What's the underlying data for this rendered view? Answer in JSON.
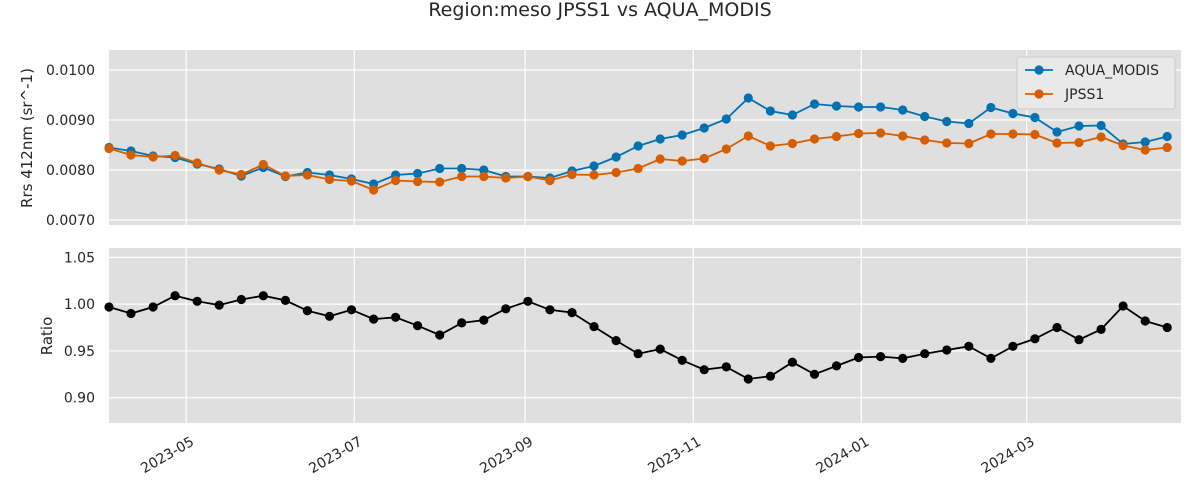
{
  "figure": {
    "title": "Region:meso JPSS1 vs AQUA_MODIS"
  },
  "chart_data": [
    {
      "type": "line",
      "ylabel": "Rrs 412nm (sr^-1)",
      "ylim": [
        0.0069,
        0.0104
      ],
      "xlim": [
        "2023-04-03",
        "2024-04-26"
      ],
      "yticks": [
        0.007,
        0.008,
        0.009,
        0.01
      ],
      "ytick_labels": [
        "0.0070",
        "0.0080",
        "0.0090",
        "0.0100"
      ],
      "grid": true,
      "legend_position": "top-right",
      "x": [
        "2023-04-03",
        "2023-04-11",
        "2023-04-19",
        "2023-04-27",
        "2023-05-05",
        "2023-05-13",
        "2023-05-21",
        "2023-05-29",
        "2023-06-06",
        "2023-06-14",
        "2023-06-22",
        "2023-06-30",
        "2023-07-08",
        "2023-07-16",
        "2023-07-24",
        "2023-08-01",
        "2023-08-09",
        "2023-08-17",
        "2023-08-25",
        "2023-09-02",
        "2023-09-10",
        "2023-09-18",
        "2023-09-26",
        "2023-10-04",
        "2023-10-12",
        "2023-10-20",
        "2023-10-28",
        "2023-11-05",
        "2023-11-13",
        "2023-11-21",
        "2023-11-29",
        "2023-12-07",
        "2023-12-15",
        "2023-12-23",
        "2023-12-31",
        "2024-01-08",
        "2024-01-16",
        "2024-01-24",
        "2024-02-01",
        "2024-02-09",
        "2024-02-17",
        "2024-02-25",
        "2024-03-04",
        "2024-03-12",
        "2024-03-20",
        "2024-03-28",
        "2024-04-05",
        "2024-04-13",
        "2024-04-21"
      ],
      "series": [
        {
          "name": "AQUA_MODIS",
          "color": "#0072b2",
          "values": [
            0.00845,
            0.00838,
            0.00828,
            0.00825,
            0.00812,
            0.00802,
            0.00788,
            0.00805,
            0.00787,
            0.00795,
            0.0079,
            0.00782,
            0.00772,
            0.0079,
            0.00793,
            0.00803,
            0.00803,
            0.008,
            0.00787,
            0.00787,
            0.00784,
            0.00798,
            0.00808,
            0.00826,
            0.00848,
            0.00862,
            0.0087,
            0.00884,
            0.00902,
            0.00944,
            0.00918,
            0.0091,
            0.00932,
            0.00928,
            0.00926,
            0.00926,
            0.0092,
            0.00907,
            0.00897,
            0.00893,
            0.00925,
            0.00913,
            0.00905,
            0.00876,
            0.00888,
            0.00889,
            0.00852,
            0.00856,
            0.00867
          ]
        },
        {
          "name": "JPSS1",
          "color": "#d55e00",
          "values": [
            0.00843,
            0.0083,
            0.00826,
            0.00829,
            0.00814,
            0.008,
            0.00791,
            0.00811,
            0.00788,
            0.0079,
            0.00781,
            0.00778,
            0.0076,
            0.00779,
            0.00777,
            0.00776,
            0.00787,
            0.00787,
            0.00784,
            0.00787,
            0.00779,
            0.00791,
            0.0079,
            0.00795,
            0.00803,
            0.00822,
            0.00818,
            0.00823,
            0.00842,
            0.00868,
            0.00848,
            0.00853,
            0.00862,
            0.00867,
            0.00873,
            0.00874,
            0.00868,
            0.0086,
            0.00854,
            0.00853,
            0.00872,
            0.00872,
            0.00871,
            0.00854,
            0.00855,
            0.00866,
            0.00849,
            0.0084,
            0.00845
          ]
        }
      ]
    },
    {
      "type": "line",
      "ylabel": "Ratio",
      "ylim": [
        0.873,
        1.06
      ],
      "yticks": [
        0.9,
        0.95,
        1.0,
        1.05
      ],
      "ytick_labels": [
        "0.90",
        "0.95",
        "1.00",
        "1.05"
      ],
      "grid": true,
      "xtick_dates": [
        "2023-05-01",
        "2023-07-01",
        "2023-09-01",
        "2023-11-01",
        "2024-01-01",
        "2024-03-01"
      ],
      "xtick_labels": [
        "2023-05",
        "2023-07",
        "2023-09",
        "2023-11",
        "2024-01",
        "2024-03"
      ],
      "series": [
        {
          "color": "#000000",
          "values": [
            0.997,
            0.99,
            0.997,
            1.009,
            1.003,
            0.999,
            1.005,
            1.009,
            1.004,
            0.993,
            0.987,
            0.994,
            0.984,
            0.986,
            0.977,
            0.967,
            0.98,
            0.983,
            0.995,
            1.003,
            0.994,
            0.991,
            0.976,
            0.961,
            0.947,
            0.952,
            0.94,
            0.93,
            0.933,
            0.92,
            0.923,
            0.938,
            0.925,
            0.934,
            0.943,
            0.944,
            0.942,
            0.947,
            0.951,
            0.955,
            0.942,
            0.955,
            0.963,
            0.975,
            0.962,
            0.973,
            0.998,
            0.982,
            0.975
          ]
        }
      ]
    }
  ]
}
